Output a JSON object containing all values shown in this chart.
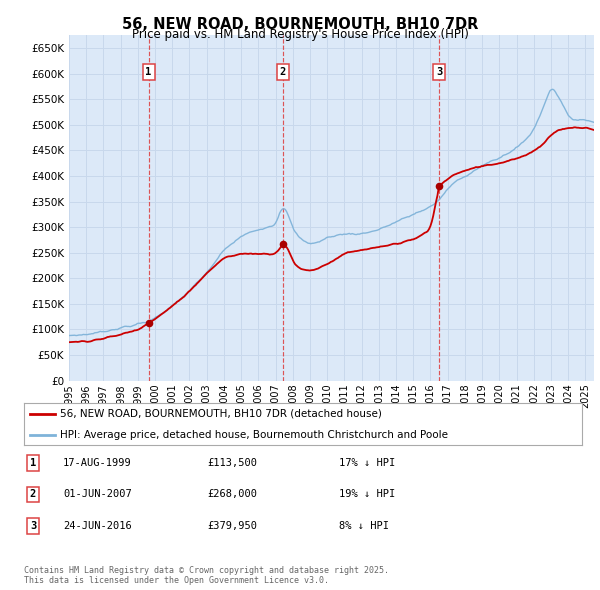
{
  "title": "56, NEW ROAD, BOURNEMOUTH, BH10 7DR",
  "subtitle": "Price paid vs. HM Land Registry's House Price Index (HPI)",
  "ylim": [
    0,
    675000
  ],
  "yticks": [
    0,
    50000,
    100000,
    150000,
    200000,
    250000,
    300000,
    350000,
    400000,
    450000,
    500000,
    550000,
    600000,
    650000
  ],
  "ytick_labels": [
    "£0",
    "£50K",
    "£100K",
    "£150K",
    "£200K",
    "£250K",
    "£300K",
    "£350K",
    "£400K",
    "£450K",
    "£500K",
    "£550K",
    "£600K",
    "£650K"
  ],
  "background_color": "#ffffff",
  "plot_bg_color": "#dce9f8",
  "grid_color": "#c8d8ec",
  "red_line_color": "#cc0000",
  "blue_line_color": "#7fb3d9",
  "vline_color": "#dd4444",
  "sale_marker_color": "#aa0000",
  "legend_red_label": "56, NEW ROAD, BOURNEMOUTH, BH10 7DR (detached house)",
  "legend_blue_label": "HPI: Average price, detached house, Bournemouth Christchurch and Poole",
  "table_rows": [
    {
      "num": "1",
      "date": "17-AUG-1999",
      "price": "£113,500",
      "change": "17% ↓ HPI"
    },
    {
      "num": "2",
      "date": "01-JUN-2007",
      "price": "£268,000",
      "change": "19% ↓ HPI"
    },
    {
      "num": "3",
      "date": "24-JUN-2016",
      "price": "£379,950",
      "change": "8% ↓ HPI"
    }
  ],
  "footer": "Contains HM Land Registry data © Crown copyright and database right 2025.\nThis data is licensed under the Open Government Licence v3.0.",
  "xmin": 1995.0,
  "xmax": 2025.5,
  "sale_years": [
    1999.625,
    2007.417,
    2016.5
  ],
  "sale_prices": [
    113500,
    268000,
    379950
  ],
  "hpi_knots_x": [
    1995,
    1996,
    1997,
    1998,
    1999,
    1999.6,
    2000,
    2001,
    2002,
    2003,
    2004,
    2005,
    2006,
    2007,
    2007.4,
    2007.8,
    2008,
    2008.5,
    2009,
    2009.5,
    2010,
    2011,
    2012,
    2013,
    2014,
    2015,
    2016,
    2016.5,
    2017,
    2017.5,
    2018,
    2019,
    2020,
    2020.5,
    2021,
    2021.5,
    2022,
    2022.5,
    2023,
    2023.3,
    2023.6,
    2024,
    2024.5,
    2025,
    2025.5
  ],
  "hpi_knots_y": [
    88000,
    90000,
    96000,
    103000,
    110000,
    115000,
    123000,
    145000,
    175000,
    210000,
    255000,
    282000,
    296000,
    305000,
    345000,
    320000,
    295000,
    275000,
    268000,
    270000,
    280000,
    287000,
    287000,
    295000,
    310000,
    325000,
    340000,
    352000,
    375000,
    390000,
    400000,
    420000,
    435000,
    445000,
    455000,
    470000,
    490000,
    530000,
    575000,
    565000,
    545000,
    515000,
    510000,
    510000,
    505000
  ],
  "red_knots_x": [
    1995,
    1996,
    1997,
    1998,
    1999,
    1999.625,
    2000,
    2001,
    2002,
    2003,
    2004,
    2005,
    2006,
    2007,
    2007.417,
    2007.8,
    2008,
    2008.5,
    2009,
    2009.5,
    2010,
    2011,
    2012,
    2013,
    2014,
    2015,
    2016,
    2016.5,
    2017,
    2017.5,
    2018,
    2019,
    2020,
    2021,
    2021.5,
    2022,
    2022.5,
    2023,
    2023.5,
    2024,
    2025,
    2025.5
  ],
  "red_knots_y": [
    75000,
    77000,
    82000,
    90000,
    100000,
    113500,
    120000,
    145000,
    175000,
    210000,
    240000,
    248000,
    248000,
    248000,
    268000,
    255000,
    230000,
    218000,
    215000,
    220000,
    228000,
    248000,
    255000,
    260000,
    268000,
    275000,
    295000,
    379950,
    395000,
    405000,
    410000,
    420000,
    425000,
    435000,
    440000,
    450000,
    460000,
    480000,
    490000,
    495000,
    495000,
    490000
  ]
}
